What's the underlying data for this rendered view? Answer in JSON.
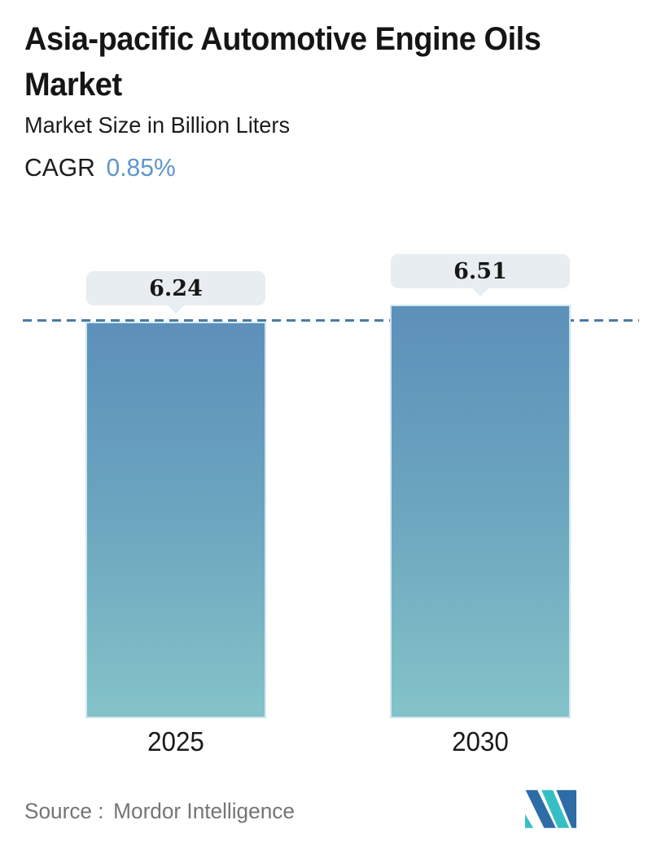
{
  "header": {
    "title_line1": "Asia-pacific Automotive Engine Oils",
    "title_line2": "Market",
    "subtitle": "Market Size in Billion Liters",
    "cagr_label": "CAGR",
    "cagr_value": "0.85%"
  },
  "chart_data": {
    "type": "bar",
    "title": "Asia-pacific Automotive Engine Oils Market",
    "subtitle": "Market Size in Billion Liters",
    "cagr": "0.85%",
    "categories": [
      "2025",
      "2030"
    ],
    "values": [
      6.24,
      6.51
    ],
    "value_labels": [
      "6.24",
      "6.51"
    ],
    "reference_line_value": 6.24,
    "grid": false,
    "legend": false,
    "bar_gradient_top": "#5d90ba",
    "bar_gradient_bottom": "#83c3c8",
    "dashed_line_color": "#4a7ba2",
    "tooltip_bg": "#e7edf0"
  },
  "footer": {
    "source_label": "Source :",
    "source_value": "Mordor Intelligence"
  },
  "colors": {
    "accent_blue": "#5e97c9",
    "title_text": "#151515",
    "source_gray": "#757575",
    "logo_blue": "#2d6ca6",
    "logo_teal": "#36bec5"
  }
}
